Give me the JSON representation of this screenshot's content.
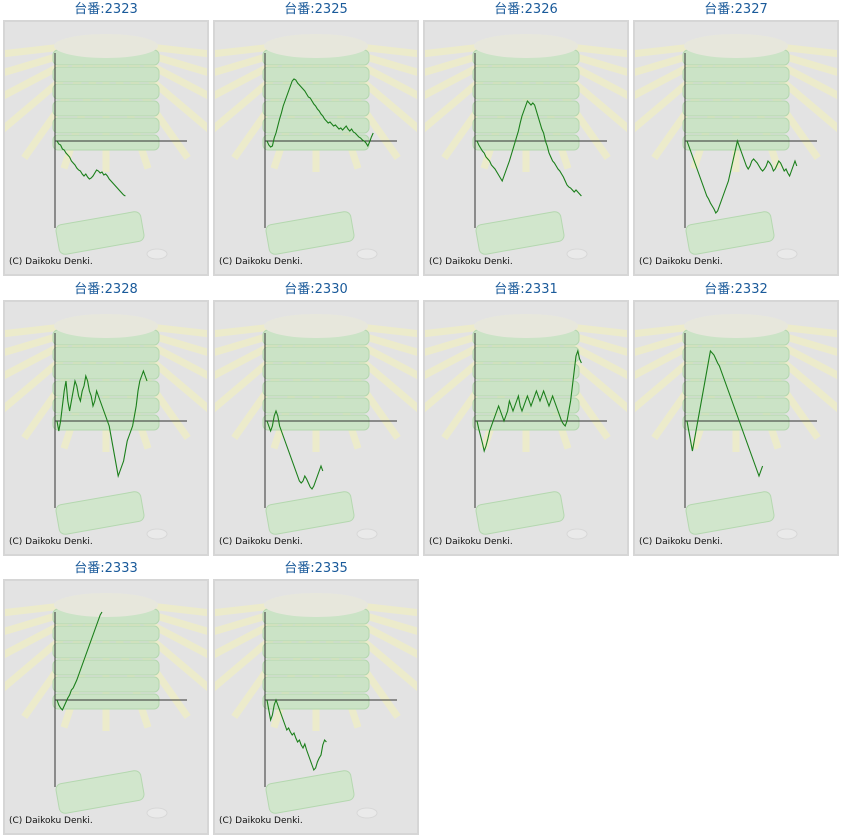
{
  "credit": "(C) Daikoku Denki.",
  "colors": {
    "title": "#1a5a9a",
    "line": "#1b7f1b",
    "axis": "#333333",
    "panel_bg": "#e3e3e3"
  },
  "background_art": "slot-machine-payout-tray",
  "machines": [
    {
      "title": "台番:2323",
      "series": [
        0,
        -3,
        -4,
        -8,
        -9,
        -12,
        -14,
        -16,
        -20,
        -22,
        -24,
        -27,
        -29,
        -30,
        -33,
        -35,
        -33,
        -36,
        -38,
        -37,
        -35,
        -32,
        -29,
        -30,
        -32,
        -31,
        -34,
        -33,
        -35,
        -38,
        -40,
        -42,
        -44,
        -46,
        -48,
        -50,
        -52,
        -54,
        -55
      ]
    },
    {
      "title": "台番:2325",
      "series": [
        0,
        -4,
        -6,
        -5,
        3,
        8,
        15,
        22,
        28,
        35,
        40,
        45,
        50,
        55,
        60,
        62,
        61,
        58,
        56,
        54,
        52,
        50,
        47,
        44,
        43,
        40,
        37,
        35,
        32,
        30,
        27,
        25,
        22,
        20,
        18,
        19,
        17,
        15,
        16,
        14,
        12,
        13,
        11,
        13,
        15,
        12,
        10,
        12,
        9,
        8,
        6,
        4,
        3,
        1,
        0,
        -2,
        -5,
        -1,
        4,
        8
      ]
    },
    {
      "title": "台番:2326",
      "series": [
        0,
        -4,
        -7,
        -10,
        -12,
        -16,
        -18,
        -20,
        -24,
        -26,
        -28,
        -31,
        -34,
        -37,
        -40,
        -35,
        -30,
        -25,
        -20,
        -14,
        -8,
        -2,
        4,
        10,
        18,
        25,
        30,
        35,
        40,
        38,
        36,
        38,
        36,
        30,
        24,
        18,
        12,
        8,
        0,
        -5,
        -12,
        -16,
        -20,
        -22,
        -25,
        -28,
        -30,
        -33,
        -36,
        -40,
        -44,
        -46,
        -47,
        -49,
        -51,
        -49,
        -51,
        -53,
        -55
      ]
    },
    {
      "title": "台番:2327",
      "series": [
        0,
        -5,
        -10,
        -15,
        -20,
        -25,
        -30,
        -35,
        -40,
        -45,
        -50,
        -55,
        -58,
        -62,
        -65,
        -68,
        -72,
        -70,
        -65,
        -60,
        -55,
        -50,
        -45,
        -40,
        -32,
        -24,
        -16,
        -8,
        0,
        -5,
        -10,
        -15,
        -20,
        -25,
        -28,
        -25,
        -20,
        -18,
        -20,
        -22,
        -25,
        -28,
        -30,
        -28,
        -25,
        -20,
        -22,
        -25,
        -30,
        -28,
        -24,
        -20,
        -22,
        -26,
        -30,
        -28,
        -32,
        -35,
        -30,
        -25,
        -20,
        -25
      ]
    },
    {
      "title": "台番:2328",
      "series": [
        0,
        -10,
        0,
        15,
        30,
        40,
        20,
        10,
        20,
        30,
        40,
        35,
        25,
        20,
        30,
        35,
        45,
        40,
        30,
        25,
        15,
        20,
        30,
        25,
        20,
        15,
        10,
        5,
        0,
        -5,
        -15,
        -25,
        -35,
        -45,
        -55,
        -50,
        -45,
        -40,
        -30,
        -20,
        -15,
        -10,
        -5,
        5,
        15,
        30,
        40,
        45,
        50,
        45,
        40
      ]
    },
    {
      "title": "台番:2330",
      "series": [
        0,
        -5,
        -10,
        -5,
        5,
        10,
        5,
        -5,
        -10,
        -15,
        -20,
        -25,
        -30,
        -35,
        -40,
        -45,
        -50,
        -55,
        -60,
        -62,
        -60,
        -55,
        -58,
        -62,
        -66,
        -68,
        -65,
        -60,
        -55,
        -50,
        -45,
        -50
      ]
    },
    {
      "title": "台番:2331",
      "series": [
        0,
        -8,
        -15,
        -22,
        -30,
        -25,
        -18,
        -10,
        -5,
        0,
        5,
        10,
        15,
        10,
        5,
        0,
        5,
        10,
        20,
        15,
        10,
        15,
        20,
        25,
        15,
        10,
        15,
        20,
        25,
        20,
        15,
        20,
        25,
        30,
        25,
        20,
        25,
        30,
        25,
        20,
        15,
        20,
        25,
        20,
        15,
        10,
        5,
        0,
        -3,
        -5,
        0,
        10,
        20,
        35,
        50,
        65,
        70,
        62,
        58
      ]
    },
    {
      "title": "台番:2332",
      "series": [
        0,
        -10,
        -20,
        -30,
        -20,
        -10,
        0,
        10,
        20,
        30,
        40,
        50,
        60,
        70,
        68,
        66,
        62,
        58,
        55,
        50,
        45,
        40,
        35,
        30,
        25,
        20,
        15,
        10,
        5,
        0,
        -5,
        -10,
        -15,
        -20,
        -25,
        -30,
        -35,
        -40,
        -45,
        -50,
        -55,
        -50,
        -45
      ]
    },
    {
      "title": "台番:2333",
      "series": [
        0,
        -5,
        -8,
        -10,
        -6,
        -2,
        2,
        5,
        10,
        12,
        16,
        20,
        25,
        30,
        35,
        40,
        45,
        50,
        55,
        60,
        65,
        70,
        75,
        80,
        85,
        90
      ]
    },
    {
      "title": "台番:2335",
      "series": [
        0,
        -10,
        -20,
        -15,
        -5,
        0,
        -5,
        -10,
        -15,
        -20,
        -25,
        -30,
        -28,
        -32,
        -35,
        -33,
        -38,
        -42,
        -40,
        -45,
        -48,
        -44,
        -50,
        -55,
        -60,
        -65,
        -70,
        -68,
        -62,
        -58,
        -55,
        -45,
        -40,
        -42
      ]
    }
  ]
}
